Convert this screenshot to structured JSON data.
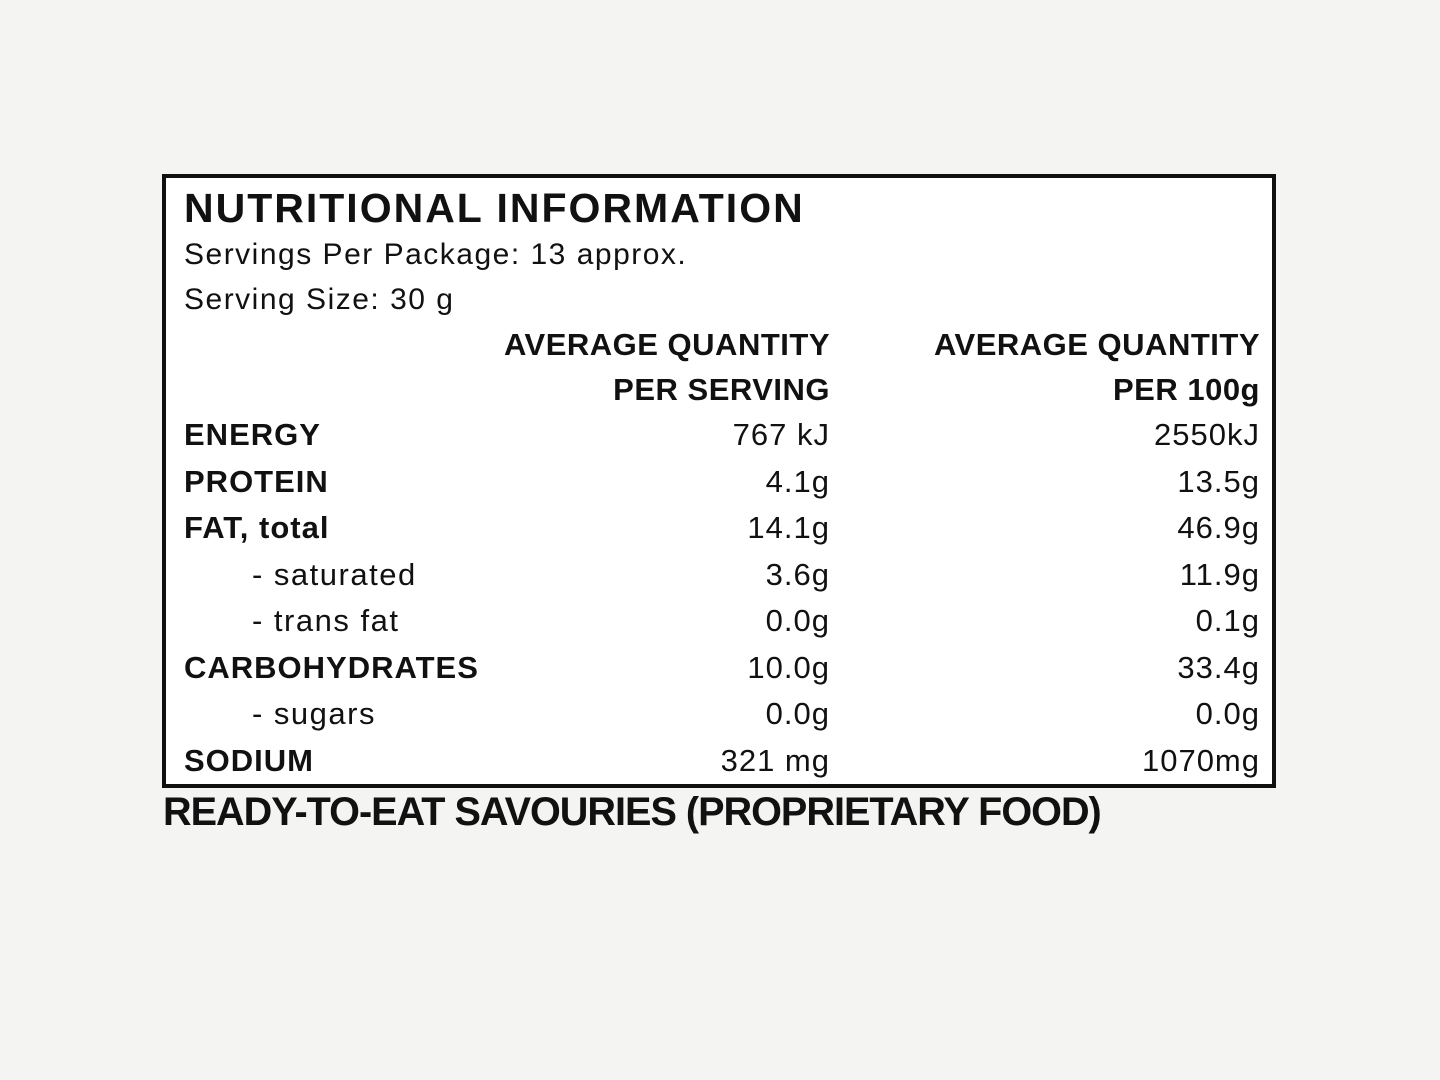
{
  "label": {
    "title": "NUTRITIONAL INFORMATION",
    "servings_per_package": "Servings Per Package: 13 approx.",
    "serving_size": "Serving Size: 30 g",
    "header": {
      "per_serving_line1": "AVERAGE QUANTITY",
      "per_serving_line2": "PER SERVING",
      "per_100g_line1": "AVERAGE QUANTITY",
      "per_100g_line2": "PER 100g"
    },
    "rows": [
      {
        "name": "ENERGY",
        "per_serving": "767 kJ",
        "per_100g": "2550kJ"
      },
      {
        "name": "PROTEIN",
        "per_serving": "4.1g",
        "per_100g": "13.5g"
      },
      {
        "name": "FAT, total",
        "per_serving": "14.1g",
        "per_100g": "46.9g"
      },
      {
        "name": "- saturated",
        "per_serving": "3.6g",
        "per_100g": "11.9g"
      },
      {
        "name": "- trans fat",
        "per_serving": "0.0g",
        "per_100g": "0.1g"
      },
      {
        "name": "CARBOHYDRATES",
        "per_serving": "10.0g",
        "per_100g": "33.4g"
      },
      {
        "name": "- sugars",
        "per_serving": "0.0g",
        "per_100g": "0.0g"
      },
      {
        "name": "SODIUM",
        "per_serving": "321 mg",
        "per_100g": "1070mg"
      }
    ],
    "footer": "READY-TO-EAT SAVOURIES (PROPRIETARY FOOD)",
    "colors": {
      "text": "#111111",
      "border": "#101010",
      "label_bg": "#ffffff",
      "page_bg": "#f4f4f3"
    }
  }
}
